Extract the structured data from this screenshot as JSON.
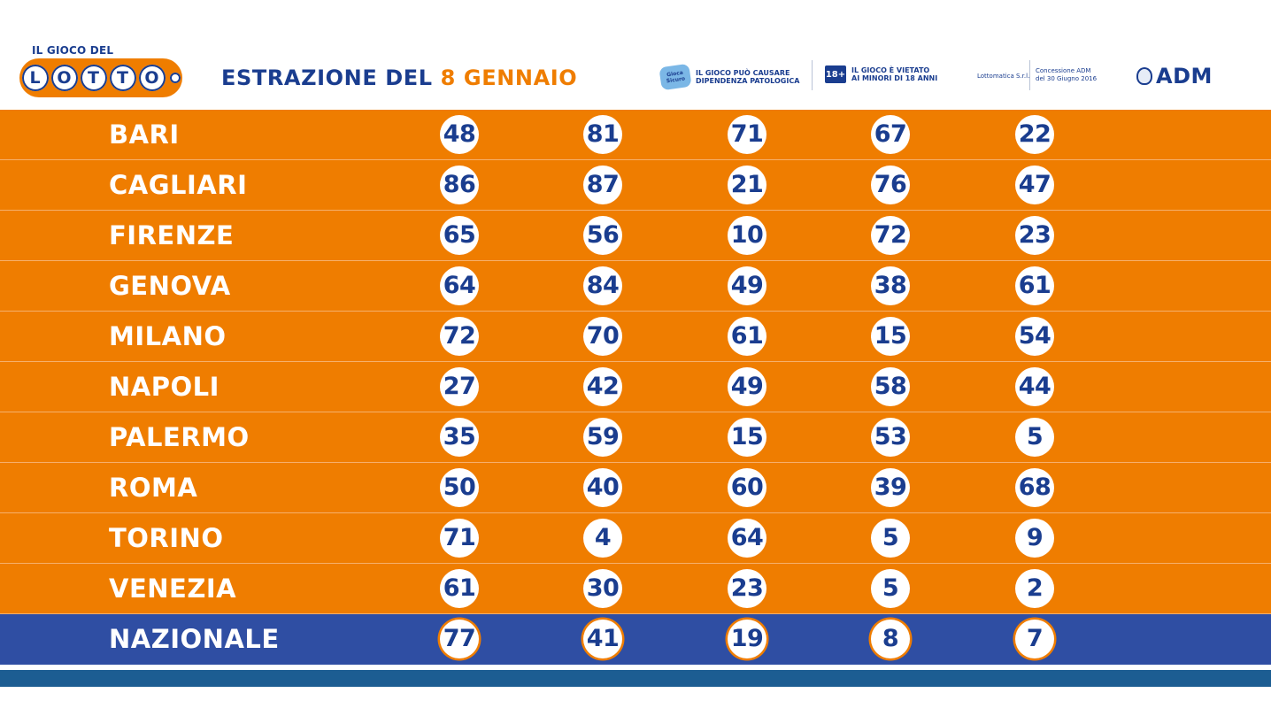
{
  "logo": {
    "top_text": "IL GIOCO DEL",
    "letters": [
      "L",
      "O",
      "T",
      "T",
      "O"
    ]
  },
  "header": {
    "title_prefix": "ESTRAZIONE DEL",
    "title_date": "8 GENNAIO"
  },
  "notices": {
    "badge_text": "Gioca Sicuro",
    "dependency_line1": "IL GIOCO PUÒ CAUSARE",
    "dependency_line2": "DIPENDENZA PATOLOGICA",
    "age_badge": "18+",
    "minors_line1": "IL GIOCO È VIETATO",
    "minors_line2": "AI MINORI DI 18 ANNI",
    "operator": "Lottomatica S.r.l.",
    "concession_line1": "Concessione ADM",
    "concession_line2": "del 30 Giugno 2016",
    "adm": "ADM"
  },
  "colors": {
    "orange": "#ef7d00",
    "blue": "#1a3d8f",
    "nazionale_blue": "#2f4ea3",
    "footer_blue": "#1c5d92"
  },
  "draw": {
    "rows": [
      {
        "city": "BARI",
        "numbers": [
          "48",
          "81",
          "71",
          "67",
          "22"
        ]
      },
      {
        "city": "CAGLIARI",
        "numbers": [
          "86",
          "87",
          "21",
          "76",
          "47"
        ]
      },
      {
        "city": "FIRENZE",
        "numbers": [
          "65",
          "56",
          "10",
          "72",
          "23"
        ]
      },
      {
        "city": "GENOVA",
        "numbers": [
          "64",
          "84",
          "49",
          "38",
          "61"
        ]
      },
      {
        "city": "MILANO",
        "numbers": [
          "72",
          "70",
          "61",
          "15",
          "54"
        ]
      },
      {
        "city": "NAPOLI",
        "numbers": [
          "27",
          "42",
          "49",
          "58",
          "44"
        ]
      },
      {
        "city": "PALERMO",
        "numbers": [
          "35",
          "59",
          "15",
          "53",
          "5"
        ]
      },
      {
        "city": "ROMA",
        "numbers": [
          "50",
          "40",
          "60",
          "39",
          "68"
        ]
      },
      {
        "city": "TORINO",
        "numbers": [
          "71",
          "4",
          "64",
          "5",
          "9"
        ]
      },
      {
        "city": "VENEZIA",
        "numbers": [
          "61",
          "30",
          "23",
          "5",
          "2"
        ]
      },
      {
        "city": "NAZIONALE",
        "numbers": [
          "77",
          "41",
          "19",
          "8",
          "7"
        ]
      }
    ]
  }
}
